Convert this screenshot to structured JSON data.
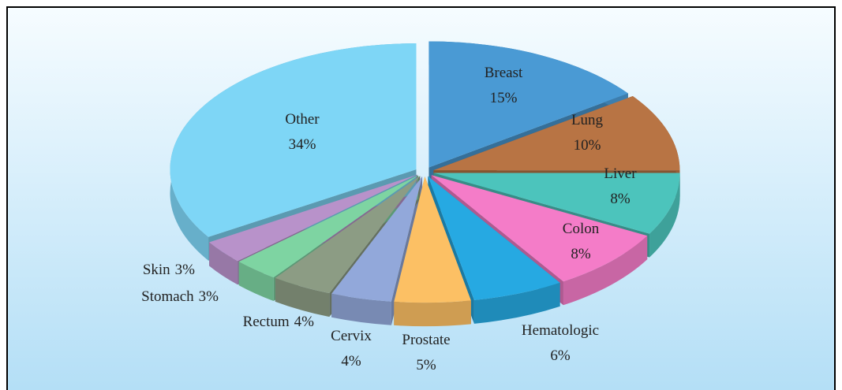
{
  "chart_data": {
    "type": "pie",
    "categories": [
      "Breast",
      "Lung",
      "Liver",
      "Colon",
      "Hematologic",
      "Prostate",
      "Cervix",
      "Rectum",
      "Stomach",
      "Skin",
      "Other"
    ],
    "values": [
      15,
      10,
      8,
      8,
      6,
      5,
      4,
      4,
      3,
      3,
      34
    ],
    "value_labels": [
      "15%",
      "10%",
      "8%",
      "8%",
      "6%",
      "5%",
      "4%",
      "4%",
      "3%",
      "3%",
      "34%"
    ],
    "colors": [
      "#4a9ad4",
      "#b87444",
      "#4cc4bc",
      "#f47cc8",
      "#26a9e2",
      "#fcc064",
      "#92a8da",
      "#8c9c84",
      "#7ed4a2",
      "#b892ca",
      "#7ed6f6"
    ]
  }
}
